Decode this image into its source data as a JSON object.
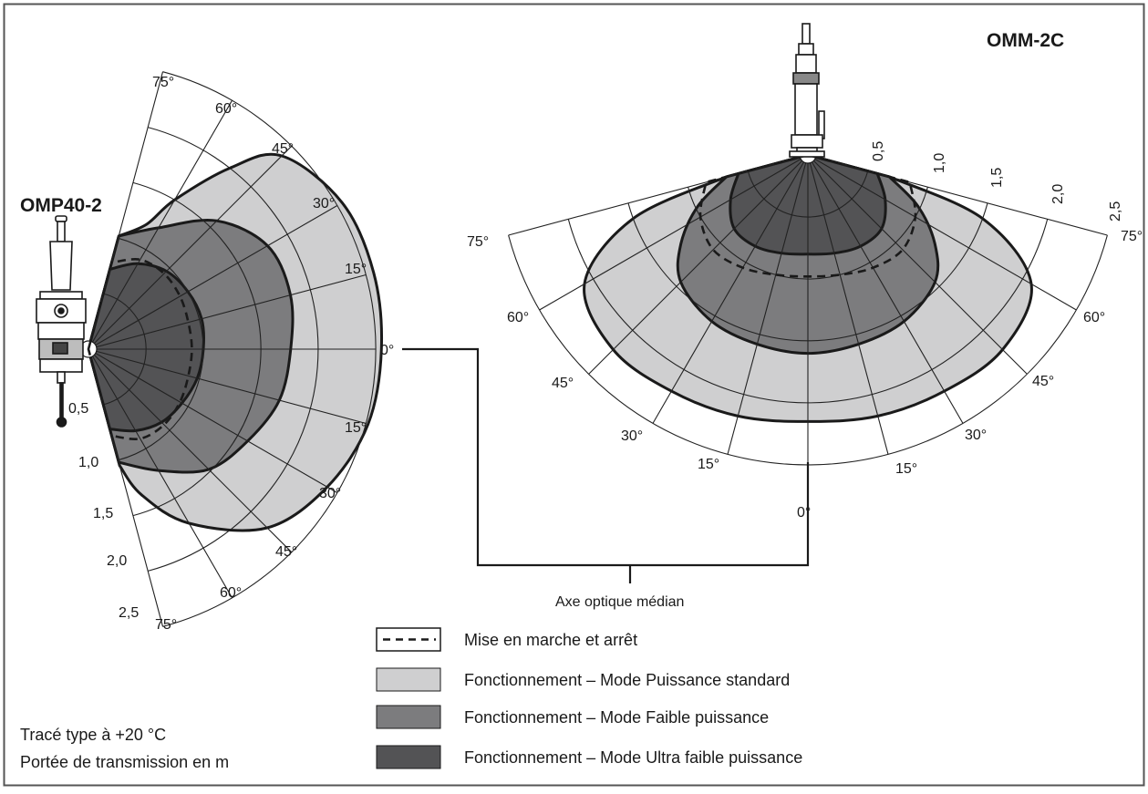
{
  "colors": {
    "standard": "#cfcfd0",
    "low": "#7c7c7e",
    "ultra_low": "#535355",
    "frame": "#555555"
  },
  "left_device": {
    "title": "OMP40-2",
    "angle_labels_upper": [
      "75°",
      "60°",
      "45°",
      "30°",
      "15°"
    ],
    "axis_label": "0°",
    "angle_labels_lower": [
      "15°",
      "30°",
      "45°",
      "60°",
      "75°"
    ],
    "range_labels": [
      "0,5",
      "1,0",
      "1,5",
      "2,0",
      "2,5"
    ]
  },
  "right_device": {
    "title": "OMM-2C",
    "range_labels": [
      "0,5",
      "1,0",
      "1,5",
      "2,0",
      "2,5"
    ],
    "angle_labels_left": [
      "75°",
      "60°",
      "45°",
      "30°",
      "15°"
    ],
    "angle_labels_right": [
      "75°",
      "60°",
      "45°",
      "30°",
      "15°"
    ],
    "axis_label": "0°"
  },
  "connector_label": "Axe optique médian",
  "legend": [
    {
      "label": "Mise en marche et arrêt",
      "style": "dashed"
    },
    {
      "label": "Fonctionnement – Mode Puissance standard",
      "style": "standard"
    },
    {
      "label": "Fonctionnement – Mode Faible puissance",
      "style": "low"
    },
    {
      "label": "Fonctionnement – Mode Ultra faible puissance",
      "style": "ultra_low"
    }
  ],
  "notes": {
    "line1": "Tracé type à +20 °C",
    "line2": "Portée de transmission en m"
  },
  "diagram_data": {
    "range_unit": "m",
    "grid_ranges": [
      0.5,
      1.0,
      1.5,
      2.0,
      2.5
    ],
    "grid_angles_deg": [
      -75,
      -60,
      -45,
      -30,
      -15,
      0,
      15,
      30,
      45,
      60,
      75
    ],
    "omp40_2": {
      "switch_on_off": [
        [
          -75,
          0.78
        ],
        [
          -60,
          0.9
        ],
        [
          -45,
          0.93
        ],
        [
          -30,
          0.92
        ],
        [
          -15,
          0.9
        ],
        [
          0,
          0.9
        ],
        [
          15,
          0.9
        ],
        [
          30,
          0.92
        ],
        [
          45,
          0.93
        ],
        [
          60,
          0.9
        ],
        [
          75,
          0.78
        ]
      ],
      "standard": [
        [
          -75,
          1.02
        ],
        [
          -65,
          1.2
        ],
        [
          -60,
          1.5
        ],
        [
          -52,
          2.0
        ],
        [
          -45,
          2.38
        ],
        [
          -30,
          2.55
        ],
        [
          -15,
          2.57
        ],
        [
          0,
          2.55
        ],
        [
          15,
          2.52
        ],
        [
          30,
          2.4
        ],
        [
          45,
          2.2
        ],
        [
          60,
          1.75
        ],
        [
          70,
          1.35
        ],
        [
          75,
          1.05
        ]
      ],
      "low": [
        [
          -75,
          1.02
        ],
        [
          -60,
          1.22
        ],
        [
          -45,
          1.58
        ],
        [
          -30,
          1.8
        ],
        [
          -15,
          1.82
        ],
        [
          0,
          1.76
        ],
        [
          15,
          1.72
        ],
        [
          30,
          1.6
        ],
        [
          45,
          1.48
        ],
        [
          60,
          1.22
        ],
        [
          75,
          1.02
        ]
      ],
      "ultra_low": [
        [
          -75,
          0.72
        ],
        [
          -60,
          0.86
        ],
        [
          -45,
          0.96
        ],
        [
          -30,
          1.0
        ],
        [
          -15,
          1.02
        ],
        [
          0,
          1.0
        ],
        [
          15,
          0.98
        ],
        [
          30,
          0.94
        ],
        [
          45,
          0.9
        ],
        [
          60,
          0.82
        ],
        [
          75,
          0.72
        ]
      ]
    },
    "omm_2c": {
      "switch_on_off": [
        [
          -75,
          0.85
        ],
        [
          -60,
          1.0
        ],
        [
          -45,
          1.08
        ],
        [
          -30,
          1.05
        ],
        [
          -15,
          1.0
        ],
        [
          0,
          0.98
        ],
        [
          15,
          1.0
        ],
        [
          30,
          1.05
        ],
        [
          45,
          1.08
        ],
        [
          60,
          1.0
        ],
        [
          75,
          0.85
        ]
      ],
      "standard": [
        [
          -75,
          0.68
        ],
        [
          -70,
          1.5
        ],
        [
          -60,
          2.08
        ],
        [
          -45,
          2.22
        ],
        [
          -30,
          2.2
        ],
        [
          -15,
          2.18
        ],
        [
          0,
          2.15
        ],
        [
          15,
          2.18
        ],
        [
          30,
          2.2
        ],
        [
          45,
          2.22
        ],
        [
          60,
          2.08
        ],
        [
          70,
          1.5
        ],
        [
          75,
          0.68
        ]
      ],
      "low": [
        [
          -75,
          0.68
        ],
        [
          -65,
          0.98
        ],
        [
          -55,
          1.25
        ],
        [
          -45,
          1.45
        ],
        [
          -30,
          1.55
        ],
        [
          -15,
          1.58
        ],
        [
          0,
          1.6
        ],
        [
          15,
          1.58
        ],
        [
          30,
          1.55
        ],
        [
          45,
          1.45
        ],
        [
          55,
          1.25
        ],
        [
          65,
          0.98
        ],
        [
          75,
          0.68
        ]
      ],
      "ultra_low": [
        [
          -75,
          0.58
        ],
        [
          -60,
          0.72
        ],
        [
          -45,
          0.84
        ],
        [
          -30,
          0.85
        ],
        [
          -15,
          0.82
        ],
        [
          0,
          0.8
        ],
        [
          15,
          0.82
        ],
        [
          30,
          0.85
        ],
        [
          45,
          0.84
        ],
        [
          60,
          0.72
        ],
        [
          75,
          0.58
        ]
      ]
    }
  }
}
